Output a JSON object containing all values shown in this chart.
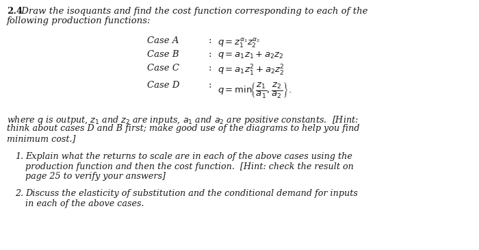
{
  "background_color": "#ffffff",
  "text_color": "#1a1a1a",
  "font_size": 9.5,
  "title_number": "2.4",
  "title_rest": " Draw the isoquants and find the cost function corresponding to each of the",
  "title_line2": "following production functions:",
  "case_labels": [
    "Case A",
    "Case B",
    "Case C",
    "Case D"
  ],
  "case_formulas": [
    "$q = z_1^{\\alpha_1} z_2^{\\alpha_2}$",
    "$q = a_1 z_1 + a_2 z_2$",
    "$q = a_1 z_1^2 + a_2 z_2^2$",
    "$q = \\min\\left\\{\\dfrac{z_1}{a_1},\\, \\dfrac{z_2}{a_2}\\right\\}.$"
  ],
  "hint_line1": "where $q$ is output, $z_1$ and $z_2$ are inputs, $a_1$ and $a_2$ are positive constants.  [Hint:",
  "hint_line2": "think about cases D and B first; make good use of the diagrams to help you find",
  "hint_line3": "minimum cost.]",
  "item1_num": "1.",
  "item1_line1": "Explain what the returns to scale are in each of the above cases using the",
  "item1_line2": "production function and then the cost function.  [Hint: check the result on",
  "item1_line3": "page 25 to verify your answers]",
  "item2_num": "2.",
  "item2_line1": "Discuss the elasticity of substitution and the conditional demand for inputs",
  "item2_line2": "in each of the above cases."
}
